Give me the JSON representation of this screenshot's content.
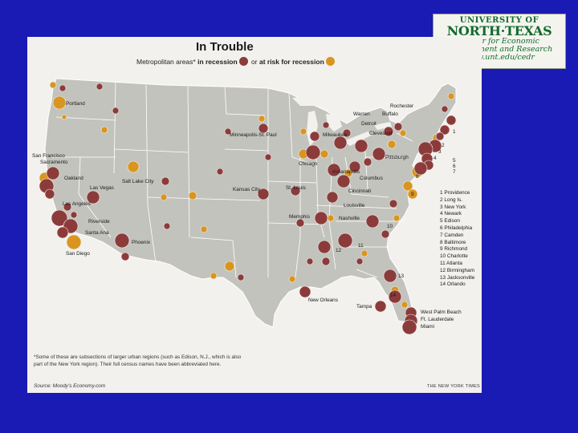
{
  "logo": {
    "line1": "UNIVERSITY OF",
    "line2": "NORTH·TEXAS",
    "line3": "Center for Economic",
    "line4": "Development and Research",
    "line5": "www.unt.edu/cedr"
  },
  "map": {
    "title": "In Trouble",
    "subtitle_prefix": "Metropolitan areas* ",
    "subtitle_recession": "in recession",
    "subtitle_mid": " or ",
    "subtitle_risk": "at risk for recession",
    "colors": {
      "recession": "#8c3b3b",
      "at_risk": "#d9951f",
      "land": "#c3c3bd",
      "water": "#f2f1ee",
      "border": "#ffffff"
    },
    "city_labels": [
      "Portland",
      "San Francisco",
      "Sacramento",
      "Oakland",
      "Salt Lake City",
      "Las Vegas",
      "Los Angeles",
      "Riverside",
      "Santa Ana",
      "San Diego",
      "Phoenix",
      "Minneapolis-St. Paul",
      "Kansas City",
      "St. Louis",
      "Memphis",
      "Milwaukee",
      "Chicago",
      "Indianapolis",
      "Columbus",
      "Cincinnati",
      "Louisville",
      "Warren",
      "Detroit",
      "Cleveland",
      "Rochester",
      "Buffalo",
      "Pittsburgh",
      "Nashville",
      "New Orleans",
      "Tampa",
      "West Palm Beach",
      "Ft. Lauderdale",
      "Miami"
    ],
    "numbered_markers": [
      "1",
      "2",
      "3",
      "4",
      "5",
      "6",
      "7",
      "8",
      "9",
      "10",
      "11",
      "12",
      "13",
      "14"
    ],
    "legend": [
      "1 Providence",
      "2 Long Is.",
      "3 New York",
      "4 Newark",
      "5 Edison",
      "6 Philadelphia",
      "7 Camden",
      "8 Baltimore",
      "9 Richmond",
      "10 Charlotte",
      "11 Atlanta",
      "12 Birmingham",
      "13 Jacksonville",
      "14 Orlando"
    ],
    "footnote_line1": "*Some of these are subsections of larger urban regions (such as Edison, N.J., which is also",
    "footnote_line2": "part of the New York region). Their full census names have been abbreviated here.",
    "source": "Source: Moody's Economy.com",
    "credit": "THE NEW YORK TIMES"
  }
}
